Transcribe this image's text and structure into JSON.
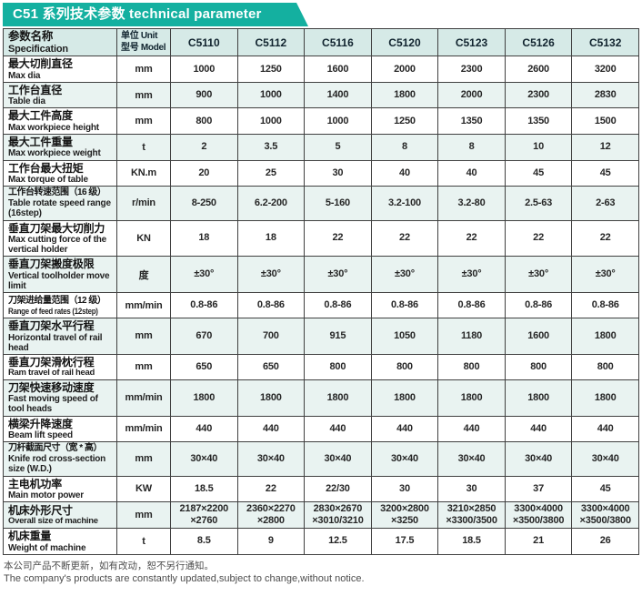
{
  "banner": {
    "title": "C51 系列技术参数 technical parameter",
    "bg_color": "#14b0a0"
  },
  "table": {
    "header": {
      "spec_cn": "参数名称",
      "spec_en": "Specification",
      "unit_cn": "单位 Unit",
      "unit_en": "型号 Model",
      "models": [
        "C5110",
        "C5112",
        "C5116",
        "C5120",
        "C5123",
        "C5126",
        "C5132"
      ]
    },
    "rows": [
      {
        "cn": "最大切削直径",
        "en": "Max dia",
        "unit": "mm",
        "values": [
          "1000",
          "1250",
          "1600",
          "2000",
          "2300",
          "2600",
          "3200"
        ]
      },
      {
        "cn": "工作台直径",
        "en": "Table dia",
        "unit": "mm",
        "values": [
          "900",
          "1000",
          "1400",
          "1800",
          "2000",
          "2300",
          "2830"
        ]
      },
      {
        "cn": "最大工件高度",
        "en": "Max workpiece height",
        "unit": "mm",
        "values": [
          "800",
          "1000",
          "1000",
          "1250",
          "1350",
          "1350",
          "1500"
        ]
      },
      {
        "cn": "最大工件重量",
        "en": "Max workpiece weight",
        "unit": "t",
        "values": [
          "2",
          "3.5",
          "5",
          "8",
          "8",
          "10",
          "12"
        ]
      },
      {
        "cn": "工作台最大扭矩",
        "en": "Max torque of table",
        "unit": "KN.m",
        "values": [
          "20",
          "25",
          "30",
          "40",
          "40",
          "45",
          "45"
        ]
      },
      {
        "cn": "工作台转速范围（16 级）",
        "en": "Table rotate speed range (16step)",
        "unit": "r/min",
        "values": [
          "8-250",
          "6.2-200",
          "5-160",
          "3.2-100",
          "3.2-80",
          "2.5-63",
          "2-63"
        ]
      },
      {
        "cn": "垂直刀架最大切削力",
        "en": "Max cutting force of the vertical holder",
        "unit": "KN",
        "values": [
          "18",
          "18",
          "22",
          "22",
          "22",
          "22",
          "22"
        ]
      },
      {
        "cn": "垂直刀架搬度极限",
        "en": "Vertical toolholder move limit",
        "unit": "度",
        "values": [
          "±30°",
          "±30°",
          "±30°",
          "±30°",
          "±30°",
          "±30°",
          "±30°"
        ]
      },
      {
        "cn": "刀架进给量范围（12 级）",
        "en": "Range of feed rates (12step)",
        "unit": "mm/min",
        "values": [
          "0.8-86",
          "0.8-86",
          "0.8-86",
          "0.8-86",
          "0.8-86",
          "0.8-86",
          "0.8-86"
        ]
      },
      {
        "cn": "垂直刀架水平行程",
        "en": "Horizontal travel of rail head",
        "unit": "mm",
        "values": [
          "670",
          "700",
          "915",
          "1050",
          "1180",
          "1600",
          "1800"
        ]
      },
      {
        "cn": "垂直刀架滑枕行程",
        "en": "Ram travel of rail head",
        "unit": "mm",
        "values": [
          "650",
          "650",
          "800",
          "800",
          "800",
          "800",
          "800"
        ]
      },
      {
        "cn": "刀架快速移动速度",
        "en": "Fast moving speed of tool heads",
        "unit": "mm/min",
        "values": [
          "1800",
          "1800",
          "1800",
          "1800",
          "1800",
          "1800",
          "1800"
        ]
      },
      {
        "cn": "横梁升降速度",
        "en": "Beam lift speed",
        "unit": "mm/min",
        "values": [
          "440",
          "440",
          "440",
          "440",
          "440",
          "440",
          "440"
        ]
      },
      {
        "cn": "刀杆截面尺寸（宽 * 高）",
        "en": "Knife rod cross-section size (W.D.)",
        "unit": "mm",
        "values": [
          "30×40",
          "30×40",
          "30×40",
          "30×40",
          "30×40",
          "30×40",
          "30×40"
        ]
      },
      {
        "cn": "主电机功率",
        "en": "Main motor power",
        "unit": "KW",
        "values": [
          "18.5",
          "22",
          "22/30",
          "30",
          "30",
          "37",
          "45"
        ]
      },
      {
        "cn": "机床外形尺寸",
        "en": "Overall size of machine",
        "unit": "mm",
        "values": [
          "2187×2200\n×2760",
          "2360×2270\n×2800",
          "2830×2670\n×3010/3210",
          "3200×2800\n×3250",
          "3210×2850\n×3300/3500",
          "3300×4000\n×3500/3800",
          "3300×4000\n×3500/3800"
        ]
      },
      {
        "cn": "机床重量",
        "en": "Weight of machine",
        "unit": "t",
        "values": [
          "8.5",
          "9",
          "12.5",
          "17.5",
          "18.5",
          "21",
          "26"
        ]
      }
    ]
  },
  "footer": {
    "cn": "本公司产品不断更新，如有改动，恕不另行通知。",
    "en": "The company's products are constantly updated,subject to change,without notice."
  }
}
